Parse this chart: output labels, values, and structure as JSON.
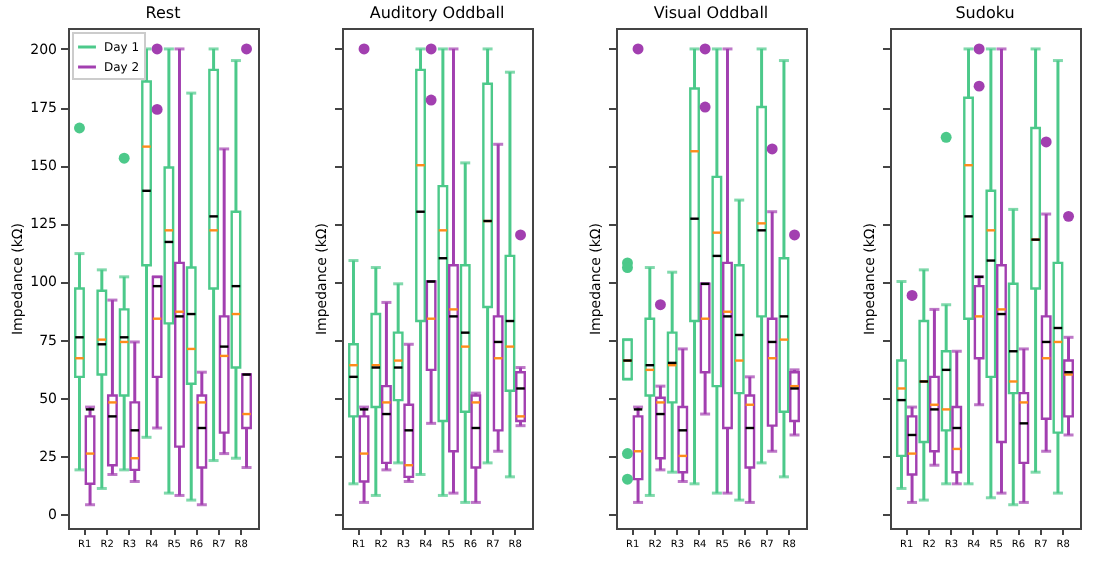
{
  "chart_data": [
    {
      "type": "box",
      "title": "Rest",
      "ylabel": "Impedance (kΩ)",
      "categories": [
        "R1",
        "R2",
        "R3",
        "R4",
        "R5",
        "R6",
        "R7",
        "R8"
      ],
      "ylim": [
        -6,
        209
      ],
      "yticks": [
        0,
        25,
        50,
        75,
        100,
        125,
        150,
        175,
        200
      ],
      "legend": "top left",
      "series": [
        {
          "name": "Day 1",
          "color": "#4cc98a",
          "boxes": [
            {
              "low": 19,
              "q1": 59,
              "median": 67,
              "q3": 97,
              "high": 112,
              "mean": 76,
              "outliers": [
                166
              ]
            },
            {
              "low": 11,
              "q1": 60,
              "median": 75,
              "q3": 96,
              "high": 105,
              "mean": 73
            },
            {
              "low": 19,
              "q1": 51,
              "median": 74,
              "q3": 88,
              "high": 102,
              "mean": 76,
              "outliers": [
                153
              ]
            },
            {
              "low": 33,
              "q1": 107,
              "median": 158,
              "q3": 186,
              "high": 200,
              "mean": 139
            },
            {
              "low": 9,
              "q1": 82,
              "median": 122,
              "q3": 149,
              "high": 200,
              "mean": 117
            },
            {
              "low": 6,
              "q1": 56,
              "median": 71,
              "q3": 106,
              "high": 181,
              "mean": 86
            },
            {
              "low": 23,
              "q1": 97,
              "median": 122,
              "q3": 191,
              "high": 200,
              "mean": 128
            },
            {
              "low": 24,
              "q1": 63,
              "median": 86,
              "q3": 130,
              "high": 195,
              "mean": 98
            }
          ]
        },
        {
          "name": "Day 2",
          "color": "#a23fb0",
          "boxes": [
            {
              "low": 4,
              "q1": 13,
              "median": 26,
              "q3": 42,
              "high": 46,
              "mean": 45
            },
            {
              "low": 17,
              "q1": 21,
              "median": 48,
              "q3": 51,
              "high": 92,
              "mean": 42
            },
            {
              "low": 14,
              "q1": 19,
              "median": 24,
              "q3": 48,
              "high": 74,
              "mean": 36
            },
            {
              "low": 37,
              "q1": 59,
              "median": 84,
              "q3": 102,
              "high": 102,
              "mean": 98,
              "outliers": [
                200,
                174
              ]
            },
            {
              "low": 8,
              "q1": 29,
              "median": 87,
              "q3": 108,
              "high": 200,
              "mean": 85
            },
            {
              "low": 4,
              "q1": 20,
              "median": 48,
              "q3": 51,
              "high": 61,
              "mean": 37
            },
            {
              "low": 26,
              "q1": 35,
              "median": 68,
              "q3": 85,
              "high": 157,
              "mean": 72
            },
            {
              "low": 20,
              "q1": 37,
              "median": 43,
              "q3": 60,
              "high": 60,
              "mean": 60,
              "outliers": [
                200
              ]
            }
          ]
        }
      ]
    },
    {
      "type": "box",
      "title": "Auditory Oddball",
      "ylabel": "Impedance (kΩ)",
      "categories": [
        "R1",
        "R2",
        "R3",
        "R4",
        "R5",
        "R6",
        "R7",
        "R8"
      ],
      "ylim": [
        -6,
        209
      ],
      "yticks": [
        0,
        25,
        50,
        75,
        100,
        125,
        150,
        175,
        200
      ],
      "tick_labels": "x",
      "series": [
        {
          "color": "#4cc98a",
          "boxes": [
            {
              "low": 13,
              "q1": 42,
              "median": 64,
              "q3": 73,
              "high": 109,
              "mean": 59
            },
            {
              "low": 8,
              "q1": 46,
              "median": 64,
              "q3": 86,
              "high": 106,
              "mean": 63
            },
            {
              "low": 22,
              "q1": 49,
              "median": 66,
              "q3": 78,
              "high": 99,
              "mean": 63
            },
            {
              "low": 17,
              "q1": 83,
              "median": 150,
              "q3": 191,
              "high": 200,
              "mean": 130
            },
            {
              "low": 8,
              "q1": 40,
              "median": 122,
              "q3": 141,
              "high": 200,
              "mean": 110
            },
            {
              "low": 5,
              "q1": 44,
              "median": 72,
              "q3": 107,
              "high": 151,
              "mean": 78
            },
            {
              "low": 22,
              "q1": 89,
              "median": 126,
              "q3": 185,
              "high": 200,
              "mean": 126
            },
            {
              "low": 16,
              "q1": 53,
              "median": 72,
              "q3": 111,
              "high": 190,
              "mean": 83
            }
          ]
        },
        {
          "color": "#a23fb0",
          "boxes": [
            {
              "low": 5,
              "q1": 14,
              "median": 26,
              "q3": 42,
              "high": 46,
              "mean": 45,
              "outliers": [
                200
              ]
            },
            {
              "low": 19,
              "q1": 22,
              "median": 48,
              "q3": 55,
              "high": 91,
              "mean": 43
            },
            {
              "low": 14,
              "q1": 16,
              "median": 21,
              "q3": 47,
              "high": 73,
              "mean": 36
            },
            {
              "low": 39,
              "q1": 62,
              "median": 84,
              "q3": 100,
              "high": 100,
              "mean": 100,
              "outliers": [
                200,
                178
              ]
            },
            {
              "low": 9,
              "q1": 27,
              "median": 88,
              "q3": 107,
              "high": 200,
              "mean": 85
            },
            {
              "low": 5,
              "q1": 20,
              "median": 48,
              "q3": 51,
              "high": 52,
              "mean": 37
            },
            {
              "low": 27,
              "q1": 36,
              "median": 67,
              "q3": 85,
              "high": 159,
              "mean": 74
            },
            {
              "low": 38,
              "q1": 40,
              "median": 42,
              "q3": 61,
              "high": 63,
              "mean": 54,
              "outliers": [
                120
              ]
            }
          ]
        }
      ]
    },
    {
      "type": "box",
      "title": "Visual Oddball",
      "ylabel": "Impedance (kΩ)",
      "categories": [
        "R1",
        "R2",
        "R3",
        "R4",
        "R5",
        "R6",
        "R7",
        "R8"
      ],
      "ylim": [
        -6,
        209
      ],
      "yticks": [
        0,
        25,
        50,
        75,
        100,
        125,
        150,
        175,
        200
      ],
      "tick_labels": "x",
      "series": [
        {
          "color": "#4cc98a",
          "boxes": [
            {
              "low": 58,
              "q1": 58,
              "median": 66,
              "q3": 75,
              "high": 75,
              "mean": 66,
              "outliers": [
                108,
                106,
                26,
                15
              ]
            },
            {
              "low": 8,
              "q1": 51,
              "median": 62,
              "q3": 84,
              "high": 106,
              "mean": 64
            },
            {
              "low": 18,
              "q1": 48,
              "median": 64,
              "q3": 78,
              "high": 104,
              "mean": 65
            },
            {
              "low": 13,
              "q1": 83,
              "median": 156,
              "q3": 183,
              "high": 200,
              "mean": 127
            },
            {
              "low": 9,
              "q1": 55,
              "median": 121,
              "q3": 145,
              "high": 200,
              "mean": 111
            },
            {
              "low": 6,
              "q1": 52,
              "median": 66,
              "q3": 107,
              "high": 135,
              "mean": 77
            },
            {
              "low": 22,
              "q1": 85,
              "median": 125,
              "q3": 175,
              "high": 200,
              "mean": 122
            },
            {
              "low": 16,
              "q1": 44,
              "median": 75,
              "q3": 110,
              "high": 195,
              "mean": 85
            }
          ]
        },
        {
          "color": "#a23fb0",
          "boxes": [
            {
              "low": 5,
              "q1": 15,
              "median": 27,
              "q3": 42,
              "high": 46,
              "mean": 45,
              "outliers": [
                200
              ]
            },
            {
              "low": 19,
              "q1": 24,
              "median": 48,
              "q3": 50,
              "high": 55,
              "mean": 43,
              "outliers": [
                90
              ]
            },
            {
              "low": 14,
              "q1": 18,
              "median": 25,
              "q3": 46,
              "high": 71,
              "mean": 36
            },
            {
              "low": 43,
              "q1": 61,
              "median": 84,
              "q3": 99,
              "high": 99,
              "mean": 99,
              "outliers": [
                200,
                175
              ]
            },
            {
              "low": 9,
              "q1": 37,
              "median": 87,
              "q3": 108,
              "high": 200,
              "mean": 85
            },
            {
              "low": 5,
              "q1": 20,
              "median": 47,
              "q3": 51,
              "high": 59,
              "mean": 37
            },
            {
              "low": 27,
              "q1": 38,
              "median": 67,
              "q3": 84,
              "high": 130,
              "mean": 74,
              "outliers": [
                157
              ]
            },
            {
              "low": 34,
              "q1": 40,
              "median": 55,
              "q3": 61,
              "high": 62,
              "mean": 54,
              "outliers": [
                120
              ]
            }
          ]
        }
      ]
    },
    {
      "type": "box",
      "title": "Sudoku",
      "ylabel": "Impedance (kΩ)",
      "categories": [
        "R1",
        "R2",
        "R3",
        "R4",
        "R5",
        "R6",
        "R7",
        "R8"
      ],
      "ylim": [
        -6,
        209
      ],
      "yticks": [
        0,
        25,
        50,
        75,
        100,
        125,
        150,
        175,
        200
      ],
      "tick_labels": "x",
      "series": [
        {
          "color": "#4cc98a",
          "boxes": [
            {
              "low": 11,
              "q1": 25,
              "median": 54,
              "q3": 66,
              "high": 100,
              "mean": 49
            },
            {
              "low": 6,
              "q1": 31,
              "median": 57,
              "q3": 83,
              "high": 105,
              "mean": 57
            },
            {
              "low": 13,
              "q1": 36,
              "median": 45,
              "q3": 70,
              "high": 90,
              "mean": 62,
              "outliers": [
                162
              ]
            },
            {
              "low": 13,
              "q1": 84,
              "median": 150,
              "q3": 179,
              "high": 200,
              "mean": 128
            },
            {
              "low": 7,
              "q1": 59,
              "median": 122,
              "q3": 139,
              "high": 200,
              "mean": 109
            },
            {
              "low": 4,
              "q1": 52,
              "median": 57,
              "q3": 99,
              "high": 131,
              "mean": 70
            },
            {
              "low": 18,
              "q1": 97,
              "median": 118,
              "q3": 166,
              "high": 200,
              "mean": 118
            },
            {
              "low": 9,
              "q1": 35,
              "median": 74,
              "q3": 108,
              "high": 195,
              "mean": 80
            }
          ]
        },
        {
          "color": "#a23fb0",
          "boxes": [
            {
              "low": 5,
              "q1": 17,
              "median": 26,
              "q3": 42,
              "high": 46,
              "mean": 34,
              "outliers": [
                94
              ]
            },
            {
              "low": 21,
              "q1": 27,
              "median": 47,
              "q3": 59,
              "high": 88,
              "mean": 45
            },
            {
              "low": 13,
              "q1": 18,
              "median": 28,
              "q3": 46,
              "high": 70,
              "mean": 37
            },
            {
              "low": 47,
              "q1": 67,
              "median": 85,
              "q3": 98,
              "high": 102,
              "mean": 102,
              "outliers": [
                200,
                184
              ]
            },
            {
              "low": 9,
              "q1": 31,
              "median": 88,
              "q3": 107,
              "high": 200,
              "mean": 86
            },
            {
              "low": 5,
              "q1": 22,
              "median": 48,
              "q3": 52,
              "high": 71,
              "mean": 39
            },
            {
              "low": 27,
              "q1": 41,
              "median": 67,
              "q3": 85,
              "high": 129,
              "mean": 74,
              "outliers": [
                160
              ]
            },
            {
              "low": 34,
              "q1": 42,
              "median": 60,
              "q3": 66,
              "high": 76,
              "mean": 61,
              "outliers": [
                128
              ]
            }
          ]
        }
      ]
    }
  ]
}
